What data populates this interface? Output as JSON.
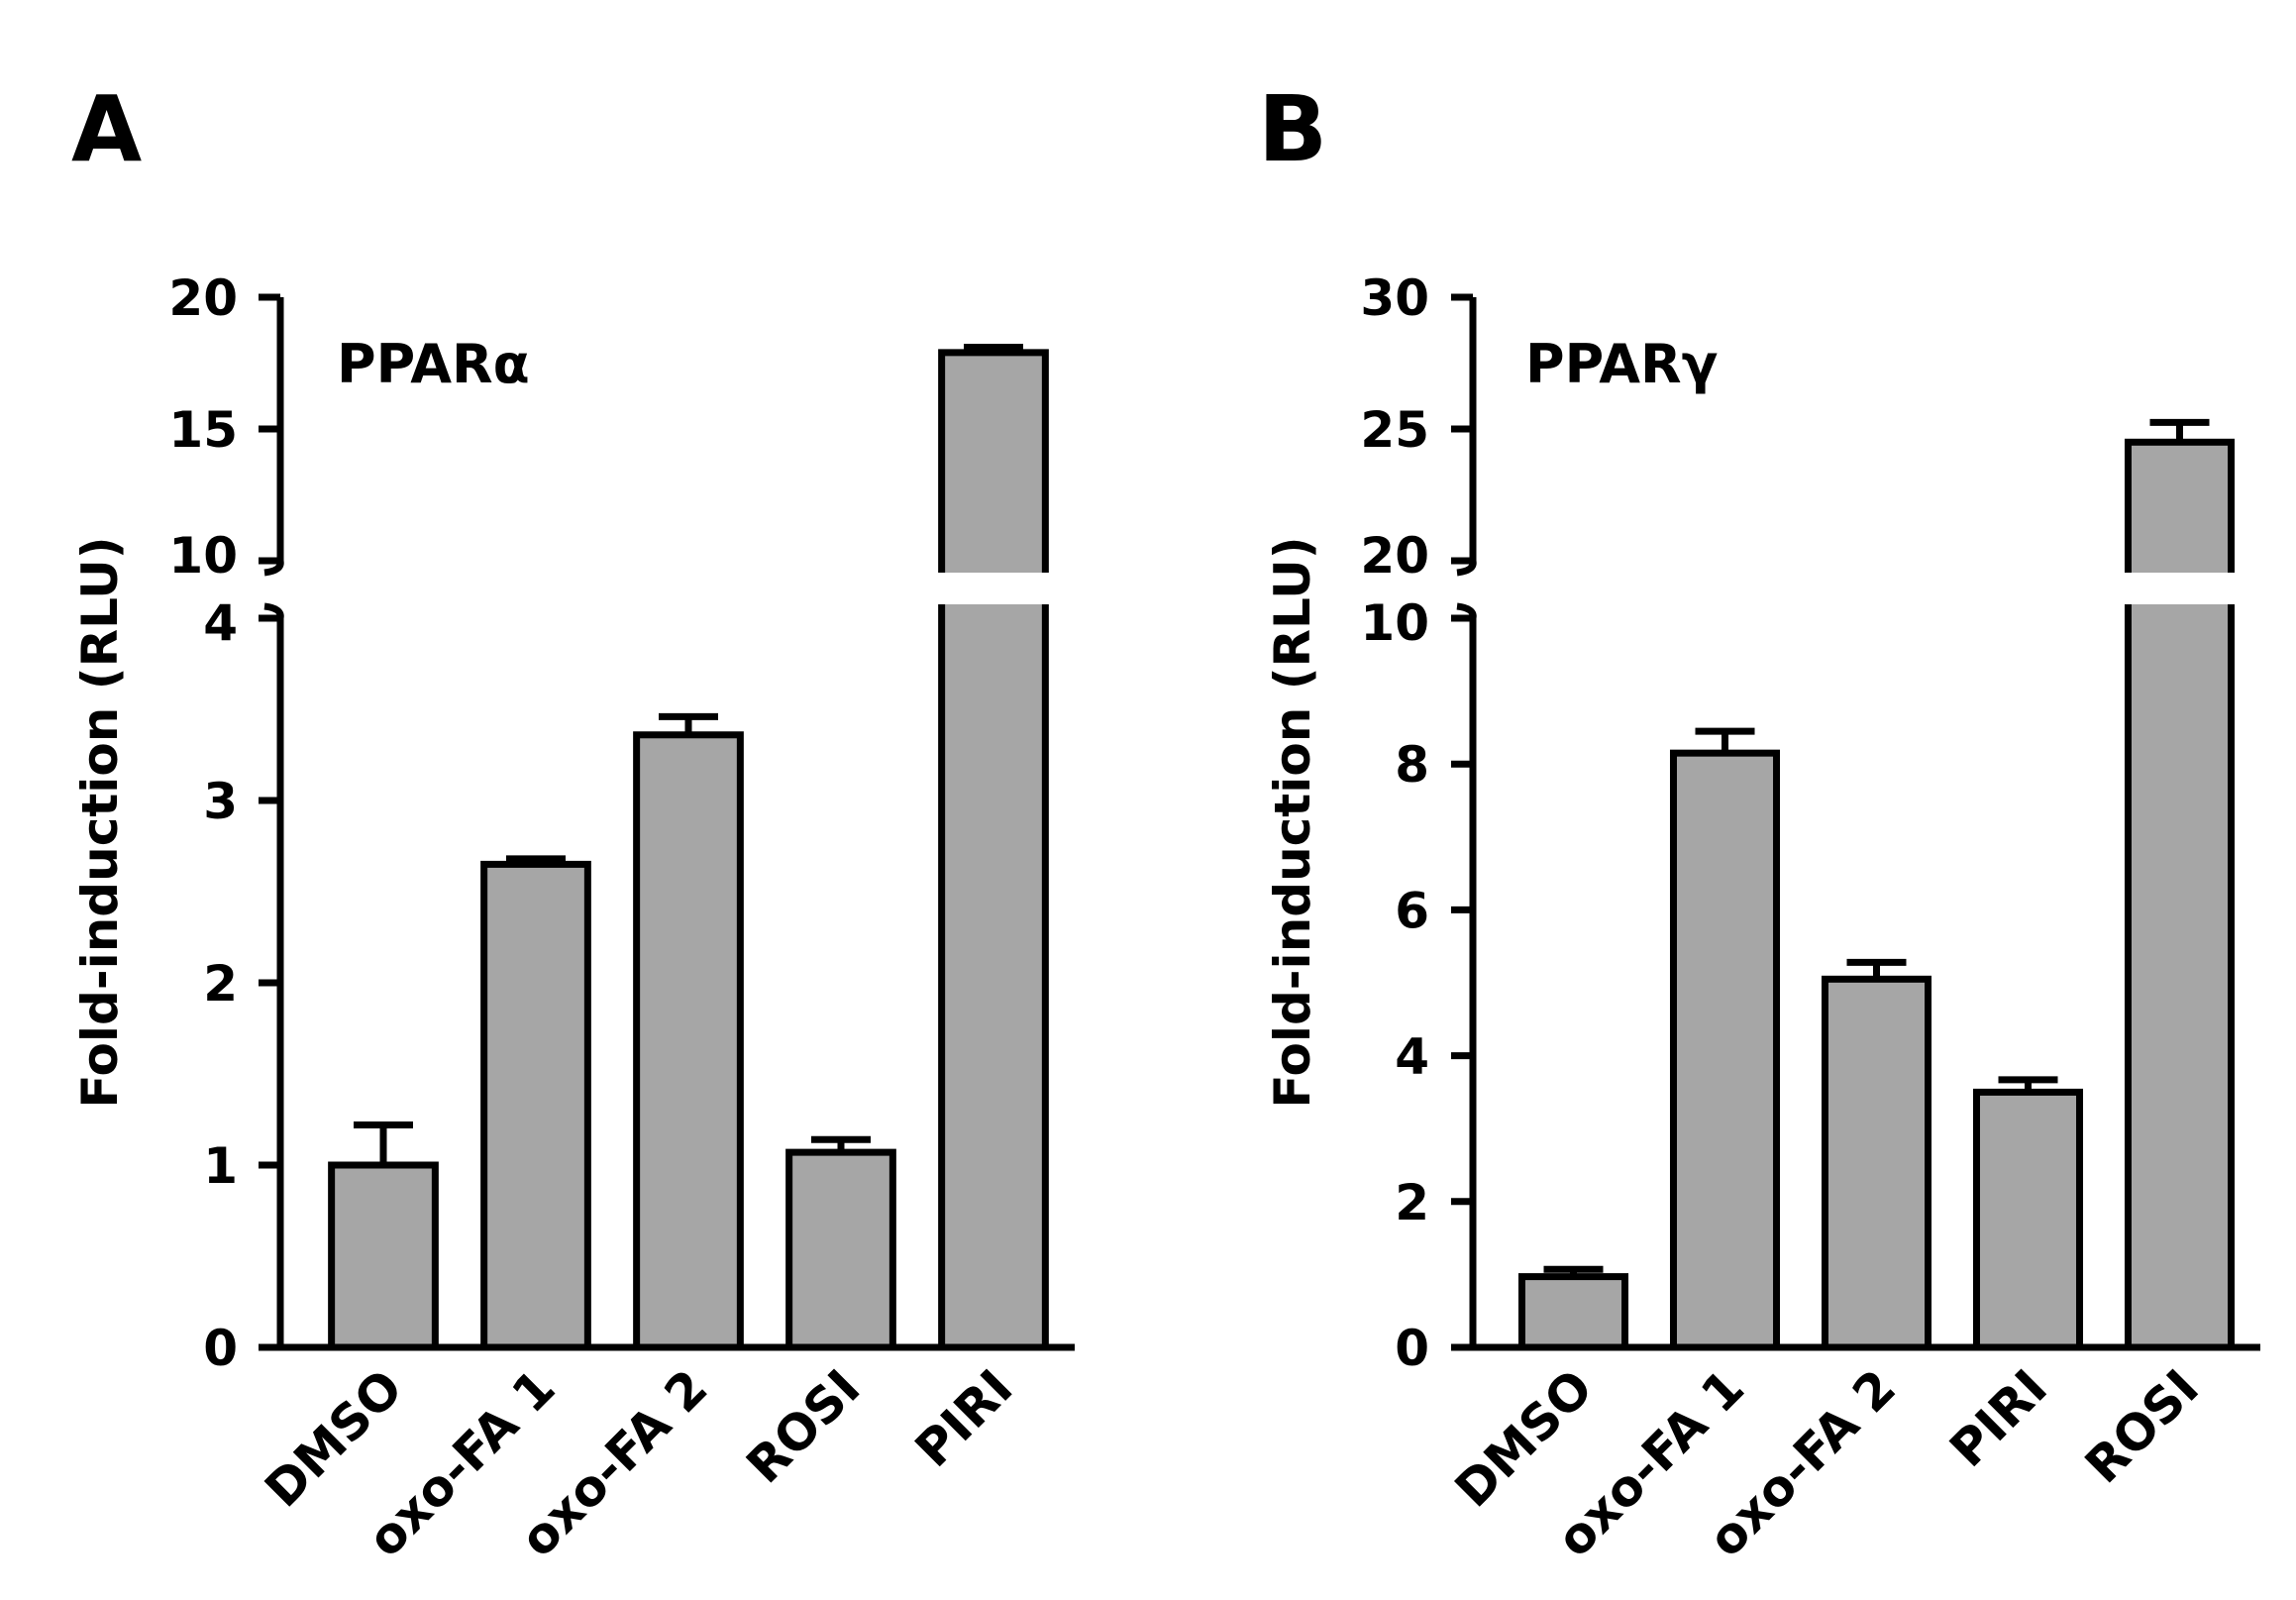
{
  "chart_data": [
    {
      "panel": "A",
      "type": "bar",
      "title": "PPARα",
      "xlabel": "",
      "ylabel": "Fold-induction (RLU)",
      "categories": [
        "DMSO",
        "oxo-FA 1",
        "oxo-FA 2",
        "ROSI",
        "PIRI"
      ],
      "values": [
        1.0,
        2.65,
        3.36,
        1.07,
        17.9
      ],
      "errors": [
        0.22,
        0.03,
        0.1,
        0.07,
        0.2
      ],
      "axis_break": true,
      "ylim_lower": [
        0,
        4
      ],
      "ylim_upper": [
        10,
        20
      ],
      "yticks_lower": [
        "0",
        "1",
        "2",
        "3",
        "4"
      ],
      "yticks_upper": [
        "10",
        "15",
        "20"
      ],
      "bar_color": "#a6a6a6"
    },
    {
      "panel": "B",
      "type": "bar",
      "title": "PPARγ",
      "xlabel": "",
      "ylabel": "Fold-induction (RLU)",
      "categories": [
        "DMSO",
        "oxo-FA 1",
        "oxo-FA 2",
        "PIRI",
        "ROSI"
      ],
      "values": [
        0.97,
        8.15,
        5.05,
        3.5,
        24.5
      ],
      "errors": [
        0.1,
        0.3,
        0.23,
        0.17,
        0.75
      ],
      "axis_break": true,
      "ylim_lower": [
        0,
        10
      ],
      "ylim_upper": [
        20,
        30
      ],
      "yticks_lower": [
        "0",
        "2",
        "4",
        "6",
        "8",
        "10"
      ],
      "yticks_upper": [
        "20",
        "25",
        "30"
      ],
      "bar_color": "#a6a6a6"
    }
  ]
}
